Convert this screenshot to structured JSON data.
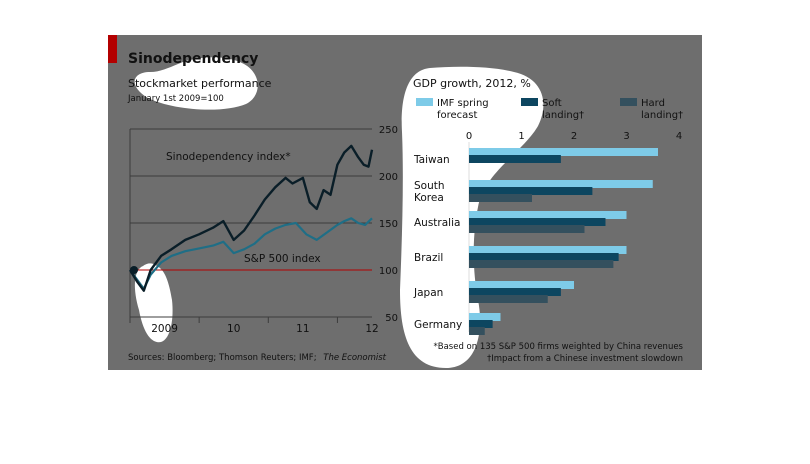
{
  "title": "Sinodependency",
  "footnotes": {
    "sources": "Sources: Bloomberg; Thomson Reuters; IMF;",
    "sources_italic": "The Economist",
    "note_star": "*Based on 135 S&P 500 firms weighted by China revenues",
    "note_dagger": "†Impact from a Chinese investment slowdown"
  },
  "colors": {
    "panel_bg": "#6e6e6e",
    "accent_red": "#b30000",
    "sino_line": "#0a1e28",
    "sp_line": "#1f6e86",
    "imf_bar": "#7ecbe8",
    "soft_bar": "#0d4660",
    "hard_bar": "#34505e",
    "gridline": "#3c3c3c",
    "highlight": "#ffffff"
  },
  "chart_data": [
    {
      "type": "line",
      "title": "Stockmarket performance",
      "subtitle": "January 1st 2009=100",
      "x_ticks": [
        "2009",
        "10",
        "11",
        "12"
      ],
      "y_ticks": [
        50,
        100,
        150,
        200,
        250
      ],
      "ylim": [
        50,
        250
      ],
      "xlim": [
        2009.0,
        2012.5
      ],
      "y_axis_position": "right",
      "grid": true,
      "series": [
        {
          "name": "Sinodependency index*",
          "points": [
            [
              2009.0,
              100
            ],
            [
              2009.1,
              88
            ],
            [
              2009.2,
              78
            ],
            [
              2009.3,
              100
            ],
            [
              2009.45,
              115
            ],
            [
              2009.6,
              122
            ],
            [
              2009.8,
              132
            ],
            [
              2010.0,
              138
            ],
            [
              2010.2,
              145
            ],
            [
              2010.35,
              152
            ],
            [
              2010.5,
              132
            ],
            [
              2010.65,
              142
            ],
            [
              2010.8,
              158
            ],
            [
              2010.95,
              175
            ],
            [
              2011.1,
              188
            ],
            [
              2011.25,
              198
            ],
            [
              2011.35,
              192
            ],
            [
              2011.5,
              198
            ],
            [
              2011.6,
              172
            ],
            [
              2011.7,
              165
            ],
            [
              2011.8,
              185
            ],
            [
              2011.9,
              180
            ],
            [
              2012.0,
              212
            ],
            [
              2012.1,
              225
            ],
            [
              2012.2,
              232
            ],
            [
              2012.3,
              220
            ],
            [
              2012.38,
              212
            ],
            [
              2012.45,
              210
            ],
            [
              2012.5,
              228
            ]
          ]
        },
        {
          "name": "S&P 500 index",
          "points": [
            [
              2009.0,
              100
            ],
            [
              2009.1,
              90
            ],
            [
              2009.2,
              80
            ],
            [
              2009.3,
              95
            ],
            [
              2009.45,
              108
            ],
            [
              2009.6,
              115
            ],
            [
              2009.8,
              120
            ],
            [
              2010.0,
              123
            ],
            [
              2010.2,
              126
            ],
            [
              2010.35,
              130
            ],
            [
              2010.5,
              118
            ],
            [
              2010.65,
              122
            ],
            [
              2010.8,
              128
            ],
            [
              2010.95,
              138
            ],
            [
              2011.1,
              144
            ],
            [
              2011.25,
              148
            ],
            [
              2011.4,
              150
            ],
            [
              2011.55,
              138
            ],
            [
              2011.7,
              132
            ],
            [
              2011.85,
              140
            ],
            [
              2012.0,
              148
            ],
            [
              2012.1,
              152
            ],
            [
              2012.2,
              155
            ],
            [
              2012.3,
              150
            ],
            [
              2012.4,
              148
            ],
            [
              2012.5,
              155
            ]
          ]
        }
      ]
    },
    {
      "type": "bar",
      "title": "GDP growth, 2012, %",
      "x_ticks": [
        0,
        1,
        2,
        3,
        4
      ],
      "xlim": [
        0,
        4
      ],
      "orientation": "horizontal",
      "categories": [
        "Taiwan",
        "South Korea",
        "Australia",
        "Brazil",
        "Japan",
        "Germany"
      ],
      "series": [
        {
          "name": "IMF spring forecast",
          "values": [
            3.6,
            3.5,
            3.0,
            3.0,
            2.0,
            0.6
          ]
        },
        {
          "name": "Soft landing†",
          "values": [
            1.75,
            2.35,
            2.6,
            2.85,
            1.75,
            0.45
          ]
        },
        {
          "name": "Hard landing†",
          "values": [
            0.0,
            1.2,
            2.2,
            2.75,
            1.5,
            0.3
          ]
        }
      ]
    }
  ]
}
